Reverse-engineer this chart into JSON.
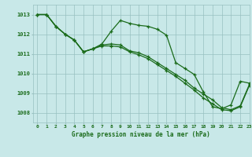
{
  "title": "Graphe pression niveau de la mer (hPa)",
  "background_color": "#c8e8e8",
  "grid_color": "#98c0c0",
  "line_color": "#1a6b1a",
  "xlim": [
    -0.5,
    23
  ],
  "ylim": [
    1007.5,
    1013.5
  ],
  "yticks": [
    1008,
    1009,
    1010,
    1011,
    1012,
    1013
  ],
  "xticks": [
    0,
    1,
    2,
    3,
    4,
    5,
    6,
    7,
    8,
    9,
    10,
    11,
    12,
    13,
    14,
    15,
    16,
    17,
    18,
    19,
    20,
    21,
    22,
    23
  ],
  "series1_x": [
    0,
    1,
    2,
    3,
    4,
    5,
    6,
    7,
    8,
    9,
    10,
    11,
    12,
    13,
    14,
    15,
    16,
    17,
    18,
    19,
    20,
    21,
    22,
    23
  ],
  "series1_y": [
    1013.0,
    1013.0,
    1012.4,
    1012.0,
    1011.7,
    1011.1,
    1011.25,
    1011.5,
    1012.15,
    1012.7,
    1012.55,
    1012.45,
    1012.4,
    1012.25,
    1011.95,
    1010.55,
    1010.25,
    1009.95,
    1009.05,
    1008.3,
    1008.2,
    1008.4,
    1009.6,
    1009.5
  ],
  "series2_x": [
    0,
    1,
    2,
    3,
    4,
    5,
    6,
    7,
    8,
    9,
    10,
    11,
    12,
    13,
    14,
    15,
    16,
    17,
    18,
    19,
    20,
    21,
    22,
    23
  ],
  "series2_y": [
    1013.0,
    1013.0,
    1012.4,
    1012.0,
    1011.7,
    1011.1,
    1011.25,
    1011.45,
    1011.5,
    1011.45,
    1011.15,
    1011.05,
    1010.85,
    1010.55,
    1010.25,
    1009.95,
    1009.65,
    1009.25,
    1008.95,
    1008.65,
    1008.25,
    1008.15,
    1008.35,
    1009.45
  ],
  "series3_x": [
    0,
    1,
    2,
    3,
    4,
    5,
    6,
    7,
    8,
    9,
    10,
    11,
    12,
    13,
    14,
    15,
    16,
    17,
    18,
    19,
    20,
    21,
    22,
    23
  ],
  "series3_y": [
    1013.0,
    1013.0,
    1012.4,
    1012.0,
    1011.7,
    1011.1,
    1011.25,
    1011.4,
    1011.4,
    1011.35,
    1011.1,
    1010.95,
    1010.75,
    1010.45,
    1010.15,
    1009.85,
    1009.5,
    1009.15,
    1008.75,
    1008.45,
    1008.15,
    1008.1,
    1008.3,
    1009.4
  ]
}
